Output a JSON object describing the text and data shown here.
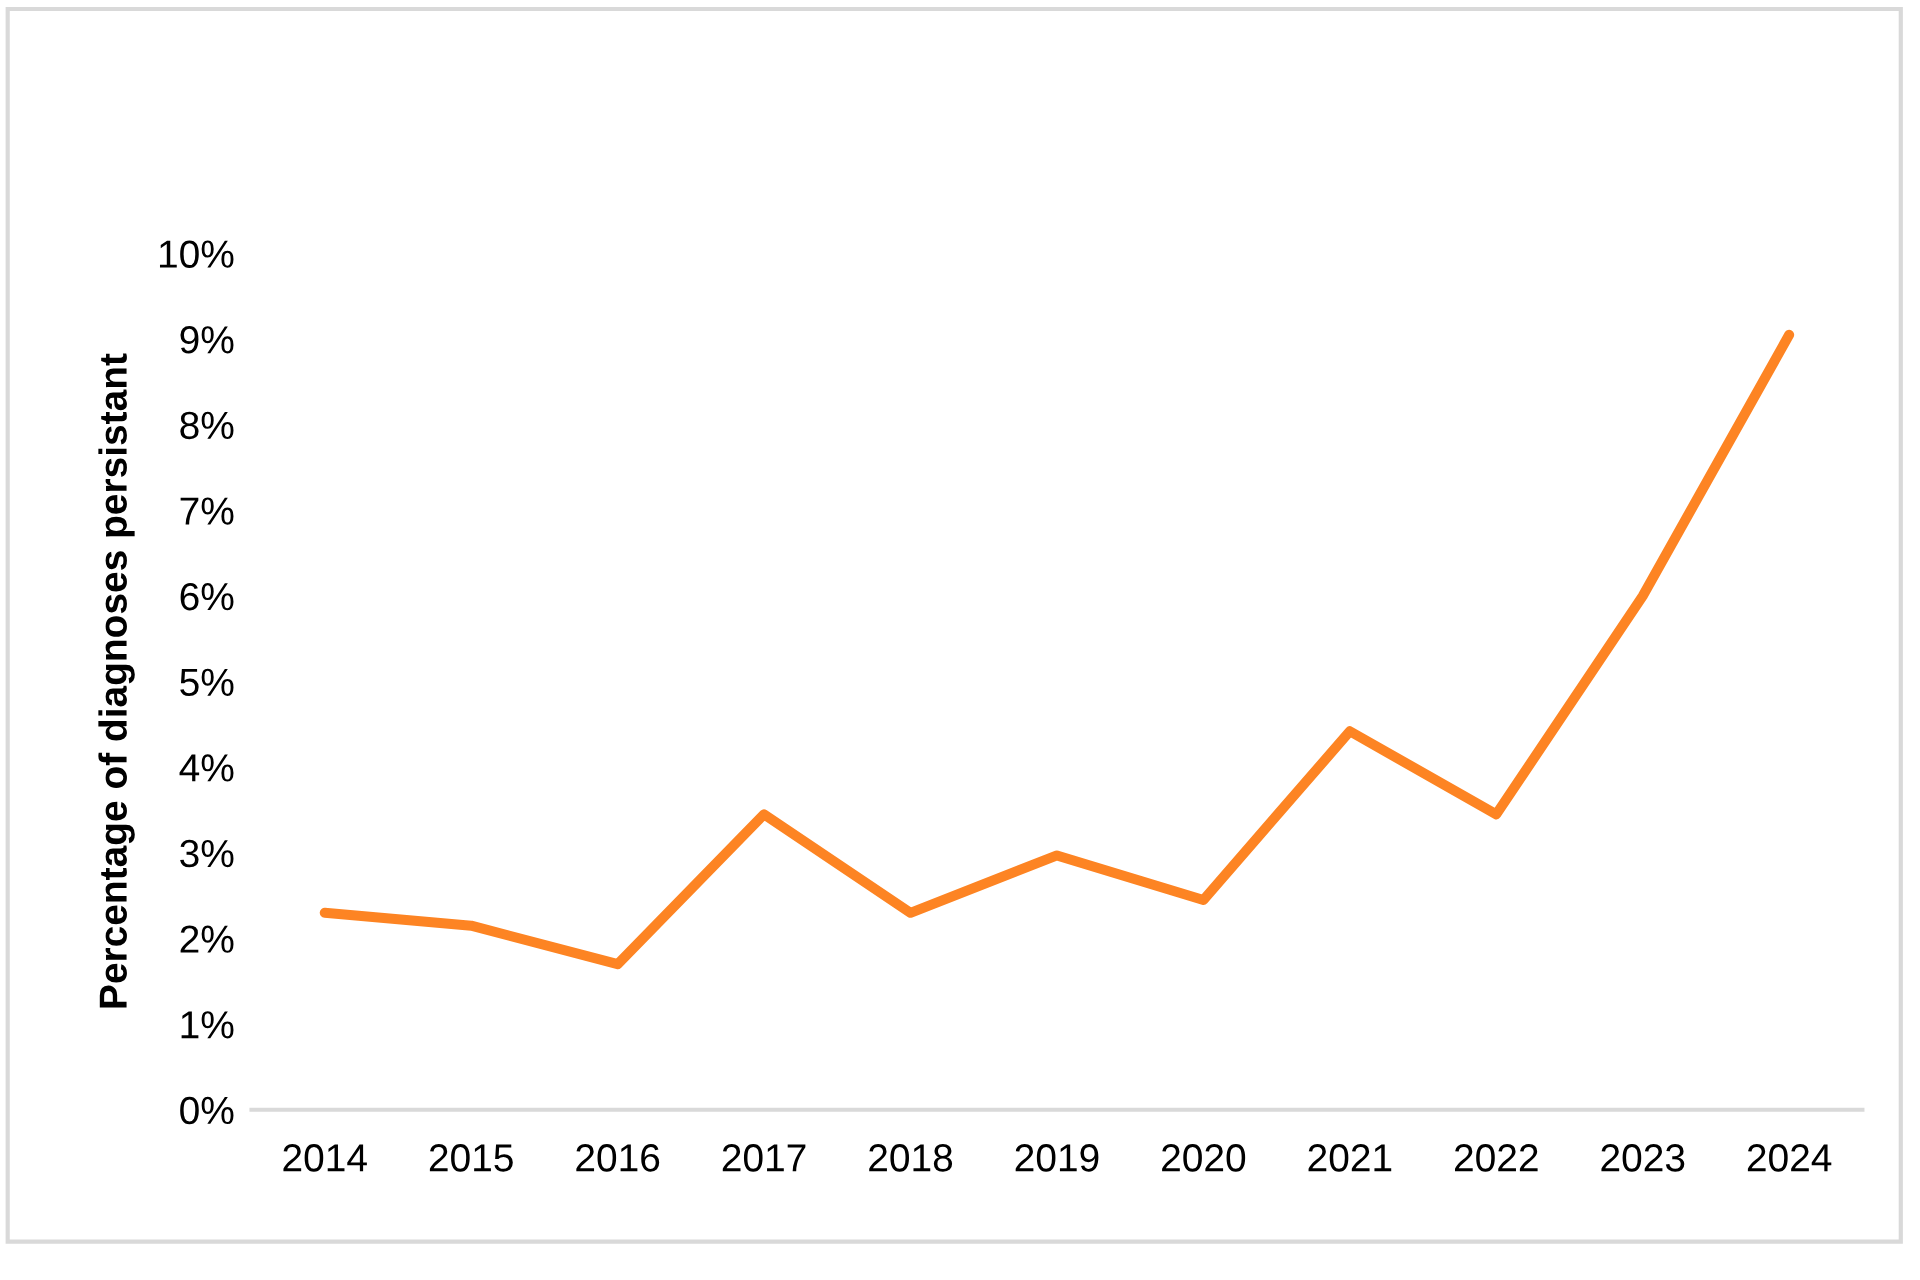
{
  "chart_data": {
    "type": "line",
    "ylabel": "Percentage of diagnoses persistant",
    "categories": [
      "2014",
      "2015",
      "2016",
      "2017",
      "2018",
      "2019",
      "2020",
      "2021",
      "2022",
      "2023",
      "2024"
    ],
    "series": [
      {
        "color": "#fd8423",
        "values": [
          2.3,
          2.15,
          1.7,
          3.45,
          2.3,
          2.97,
          2.45,
          4.42,
          3.45,
          6.0,
          9.05
        ]
      }
    ],
    "ylim": [
      0,
      10
    ],
    "yticks": [
      {
        "value": 0,
        "label": "0%"
      },
      {
        "value": 1,
        "label": "1%"
      },
      {
        "value": 2,
        "label": "2%"
      },
      {
        "value": 3,
        "label": "3%"
      },
      {
        "value": 4,
        "label": "4%"
      },
      {
        "value": 5,
        "label": "5%"
      },
      {
        "value": 6,
        "label": "6%"
      },
      {
        "value": 7,
        "label": "7%"
      },
      {
        "value": 8,
        "label": "8%"
      },
      {
        "value": 9,
        "label": "9%"
      },
      {
        "value": 10,
        "label": "10%"
      }
    ],
    "grid": false,
    "marker": "none",
    "line_style": "solid"
  }
}
